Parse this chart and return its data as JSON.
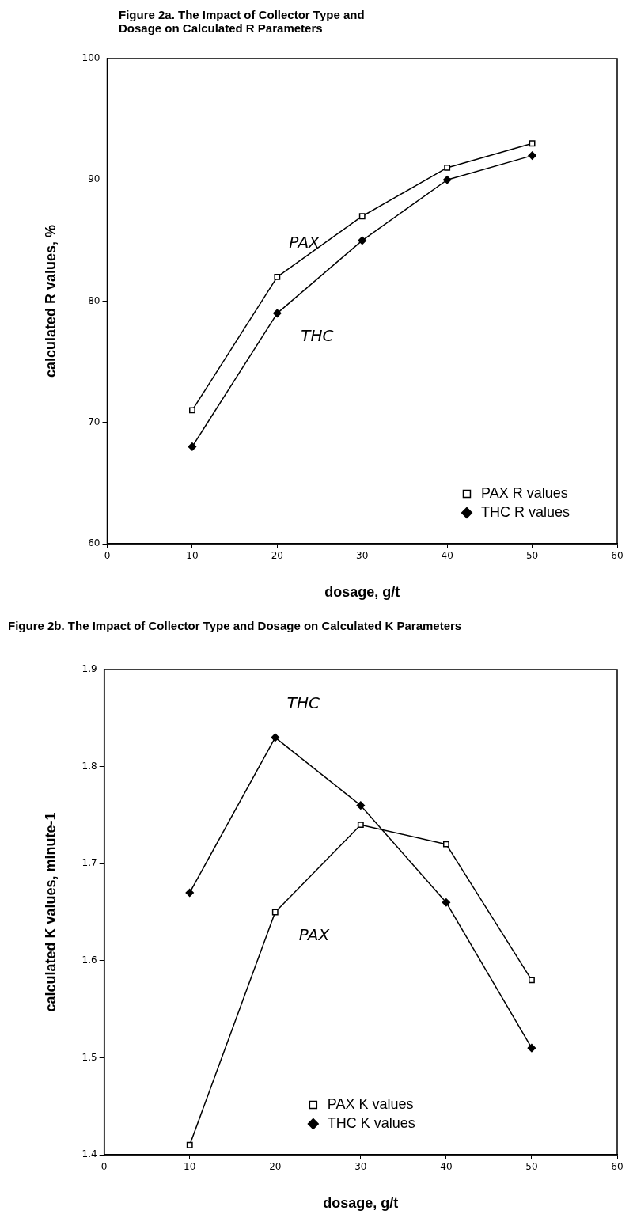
{
  "chart_data": [
    {
      "type": "line",
      "title": "Figure 2a. The Impact of Collector Type and Dosage on Calculated R Parameters",
      "xlabel": "dosage, g/t",
      "ylabel": "calculated R values, %",
      "x": [
        10,
        20,
        30,
        40,
        50
      ],
      "series": [
        {
          "name": "PAX R values",
          "color": "#000000",
          "marker": "square",
          "values": [
            71,
            82,
            87,
            91,
            93
          ]
        },
        {
          "name": "THC R values",
          "color": "#000000",
          "marker": "diamond",
          "values": [
            68,
            79,
            85,
            90,
            92
          ]
        }
      ],
      "xlim": [
        0,
        60
      ],
      "xticks": [
        0,
        10,
        20,
        30,
        40,
        50,
        60
      ],
      "ylim": [
        60,
        100
      ],
      "yticks": [
        60,
        70,
        80,
        90,
        100
      ],
      "grid": false,
      "legend": "bottom right",
      "line_style": "solid",
      "annotations": [
        "PAX",
        "THC"
      ]
    },
    {
      "type": "line",
      "title": "Figure 2b. The Impact of Collector Type and Dosage on Calculated K Parameters",
      "xlabel": "dosage, g/t",
      "ylabel": "calculated K values, minute-1",
      "x": [
        10,
        20,
        30,
        40,
        50
      ],
      "series": [
        {
          "name": "PAX K values",
          "color": "#000000",
          "marker": "square",
          "values": [
            1.41,
            1.65,
            1.74,
            1.72,
            1.58
          ]
        },
        {
          "name": "THC K values",
          "color": "#000000",
          "marker": "diamond",
          "values": [
            1.67,
            1.83,
            1.76,
            1.66,
            1.51
          ]
        }
      ],
      "xlim": [
        0,
        60
      ],
      "xticks": [
        0,
        10,
        20,
        30,
        40,
        50,
        60
      ],
      "ylim": [
        1.4,
        1.9
      ],
      "yticks": [
        1.4,
        1.5,
        1.6,
        1.7,
        1.8,
        1.9
      ],
      "grid": false,
      "legend": "bottom",
      "line_style": "solid",
      "annotations": [
        "PAX",
        "THC"
      ]
    }
  ]
}
